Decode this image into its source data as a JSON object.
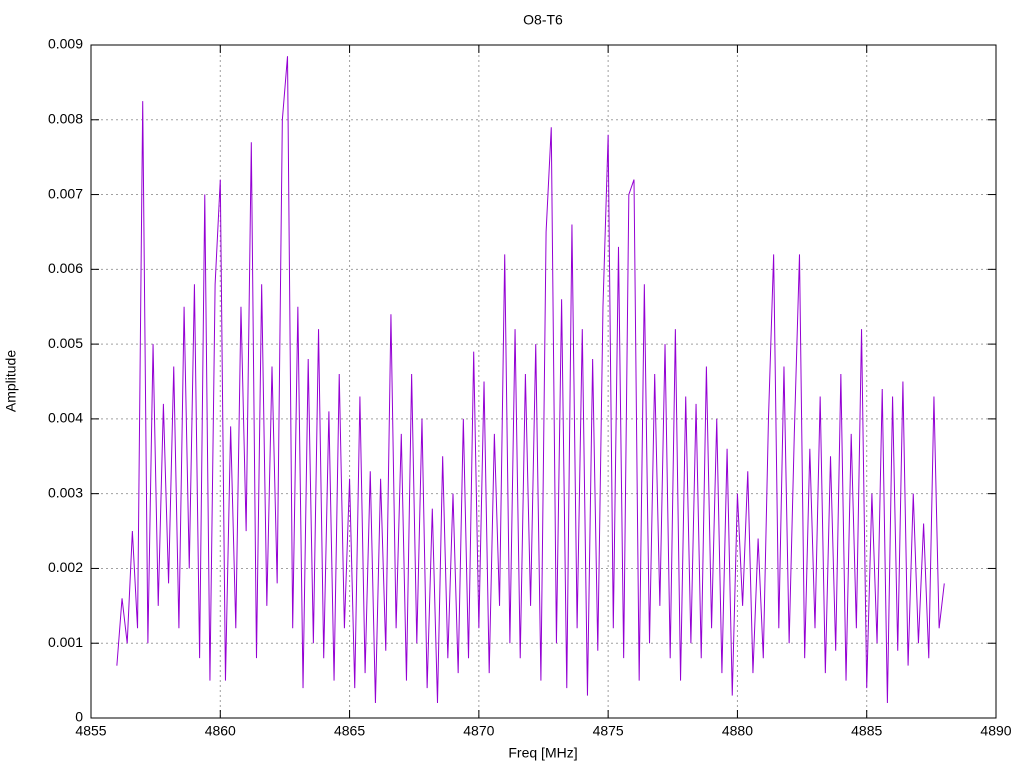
{
  "chart_data": {
    "type": "line",
    "title": "O8-T6",
    "x_label": "Freq [MHz]",
    "y_label": "Amplitude",
    "x": [
      4856.0,
      4856.2,
      4856.4,
      4856.6,
      4856.8,
      4857.0,
      4857.2,
      4857.4,
      4857.6,
      4857.8,
      4858.0,
      4858.2,
      4858.4,
      4858.6,
      4858.8,
      4859.0,
      4859.2,
      4859.4,
      4859.6,
      4859.8,
      4860.0,
      4860.2,
      4860.4,
      4860.6,
      4860.8,
      4861.0,
      4861.2,
      4861.4,
      4861.6,
      4861.8,
      4862.0,
      4862.2,
      4862.4,
      4862.6,
      4862.8,
      4863.0,
      4863.2,
      4863.4,
      4863.6,
      4863.8,
      4864.0,
      4864.2,
      4864.4,
      4864.6,
      4864.8,
      4865.0,
      4865.2,
      4865.4,
      4865.6,
      4865.8,
      4866.0,
      4866.2,
      4866.4,
      4866.6,
      4866.8,
      4867.0,
      4867.2,
      4867.4,
      4867.6,
      4867.8,
      4868.0,
      4868.2,
      4868.4,
      4868.6,
      4868.8,
      4869.0,
      4869.2,
      4869.4,
      4869.6,
      4869.8,
      4870.0,
      4870.2,
      4870.4,
      4870.6,
      4870.8,
      4871.0,
      4871.2,
      4871.4,
      4871.6,
      4871.8,
      4872.0,
      4872.2,
      4872.4,
      4872.6,
      4872.8,
      4873.0,
      4873.2,
      4873.4,
      4873.6,
      4873.8,
      4874.0,
      4874.2,
      4874.4,
      4874.6,
      4874.8,
      4875.0,
      4875.2,
      4875.4,
      4875.6,
      4875.8,
      4876.0,
      4876.2,
      4876.4,
      4876.6,
      4876.8,
      4877.0,
      4877.2,
      4877.4,
      4877.6,
      4877.8,
      4878.0,
      4878.2,
      4878.4,
      4878.6,
      4878.8,
      4879.0,
      4879.2,
      4879.4,
      4879.6,
      4879.8,
      4880.0,
      4880.2,
      4880.4,
      4880.6,
      4880.8,
      4881.0,
      4881.2,
      4881.4,
      4881.6,
      4881.8,
      4882.0,
      4882.2,
      4882.4,
      4882.6,
      4882.8,
      4883.0,
      4883.2,
      4883.4,
      4883.6,
      4883.8,
      4884.0,
      4884.2,
      4884.4,
      4884.6,
      4884.8,
      4885.0,
      4885.2,
      4885.4,
      4885.6,
      4885.8,
      4886.0,
      4886.2,
      4886.4,
      4886.6,
      4886.8,
      4887.0,
      4887.2,
      4887.4,
      4887.6,
      4887.8,
      4888.0
    ],
    "series": [
      {
        "color": "#9400d3",
        "values": [
          0.0007,
          0.0016,
          0.001,
          0.0025,
          0.0012,
          0.00825,
          0.001,
          0.005,
          0.0015,
          0.0042,
          0.0018,
          0.0047,
          0.0012,
          0.0055,
          0.002,
          0.0058,
          0.0008,
          0.007,
          0.0005,
          0.0058,
          0.0072,
          0.0005,
          0.0039,
          0.0012,
          0.0055,
          0.0025,
          0.0077,
          0.0008,
          0.0058,
          0.0015,
          0.0047,
          0.0018,
          0.008,
          0.00885,
          0.0012,
          0.0055,
          0.0004,
          0.0048,
          0.001,
          0.0052,
          0.0008,
          0.0041,
          0.0005,
          0.0046,
          0.0012,
          0.0032,
          0.0004,
          0.0043,
          0.0006,
          0.0033,
          0.0002,
          0.0032,
          0.0009,
          0.0054,
          0.0012,
          0.0038,
          0.0005,
          0.0046,
          0.001,
          0.004,
          0.0004,
          0.0028,
          0.0002,
          0.0035,
          0.0008,
          0.003,
          0.0006,
          0.004,
          0.0008,
          0.0049,
          0.0012,
          0.0045,
          0.0006,
          0.0038,
          0.0015,
          0.0062,
          0.001,
          0.0052,
          0.0008,
          0.0046,
          0.0015,
          0.005,
          0.0005,
          0.0065,
          0.0079,
          0.001,
          0.0056,
          0.0004,
          0.0066,
          0.0012,
          0.0052,
          0.0003,
          0.0048,
          0.0009,
          0.0055,
          0.0078,
          0.0012,
          0.0063,
          0.0008,
          0.007,
          0.0072,
          0.0005,
          0.0058,
          0.001,
          0.0046,
          0.0015,
          0.005,
          0.0008,
          0.0052,
          0.0005,
          0.0043,
          0.001,
          0.0042,
          0.0008,
          0.0047,
          0.0012,
          0.004,
          0.0006,
          0.0036,
          0.0003,
          0.003,
          0.0015,
          0.0033,
          0.0006,
          0.0024,
          0.0008,
          0.004,
          0.0062,
          0.0012,
          0.0047,
          0.001,
          0.0038,
          0.0062,
          0.0008,
          0.0036,
          0.0012,
          0.0043,
          0.0006,
          0.0035,
          0.0009,
          0.0046,
          0.0005,
          0.0038,
          0.0012,
          0.0052,
          0.0004,
          0.003,
          0.001,
          0.0044,
          0.0002,
          0.0043,
          0.0009,
          0.0045,
          0.0007,
          0.003,
          0.001,
          0.0026,
          0.0008,
          0.0043,
          0.0012,
          0.0018
        ]
      }
    ],
    "xlim": [
      4855,
      4890
    ],
    "xticks": [
      4855,
      4860,
      4865,
      4870,
      4875,
      4880,
      4885,
      4890
    ],
    "ylim": [
      0,
      0.009
    ],
    "yticks": [
      0,
      0.001,
      0.002,
      0.003,
      0.004,
      0.005,
      0.006,
      0.007,
      0.008,
      0.009
    ],
    "grid": true
  }
}
